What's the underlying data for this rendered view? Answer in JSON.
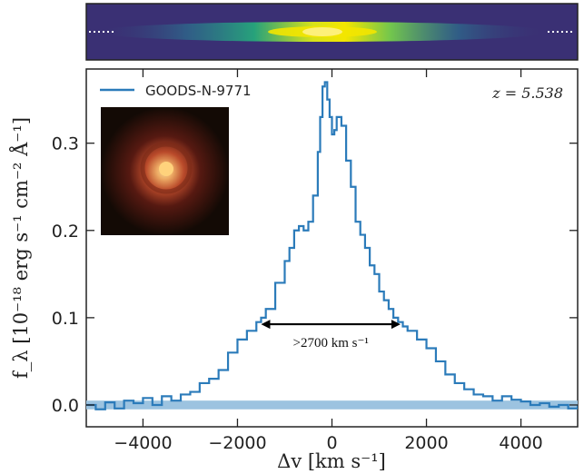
{
  "chart_data": {
    "type": "line",
    "title": "",
    "xlabel": "Δv [km s⁻¹]",
    "ylabel": "f_λ [10⁻¹⁸ erg s⁻¹ cm⁻² Å⁻¹]",
    "xlim": [
      -5200,
      5200
    ],
    "ylim": [
      -0.025,
      0.385
    ],
    "x_ticks": [
      -4000,
      -2000,
      0,
      2000,
      4000
    ],
    "x_tick_labels": [
      "−4000",
      "−2000",
      "0",
      "2000",
      "4000"
    ],
    "y_ticks": [
      0.0,
      0.1,
      0.2,
      0.3
    ],
    "y_tick_labels": [
      "0.0",
      "0.1",
      "0.2",
      "0.3"
    ],
    "grid": false,
    "legend_position": "top-left",
    "series": [
      {
        "name": "GOODS-N-9771",
        "color": "#2b7bba",
        "style": "steps",
        "x": [
          -5200,
          -5000,
          -4800,
          -4600,
          -4400,
          -4200,
          -4000,
          -3800,
          -3600,
          -3400,
          -3200,
          -3000,
          -2800,
          -2600,
          -2400,
          -2200,
          -2000,
          -1800,
          -1600,
          -1500,
          -1400,
          -1200,
          -1000,
          -900,
          -800,
          -700,
          -600,
          -500,
          -400,
          -300,
          -250,
          -200,
          -150,
          -100,
          -50,
          0,
          50,
          100,
          200,
          300,
          400,
          500,
          600,
          700,
          800,
          900,
          1000,
          1100,
          1200,
          1300,
          1400,
          1500,
          1600,
          1800,
          2000,
          2200,
          2400,
          2600,
          2800,
          3000,
          3200,
          3400,
          3600,
          3800,
          4000,
          4200,
          4400,
          4600,
          4800,
          5000,
          5200
        ],
        "y": [
          0.0,
          -0.005,
          0.003,
          -0.004,
          0.005,
          0.002,
          0.008,
          0.0,
          0.01,
          0.005,
          0.012,
          0.015,
          0.025,
          0.03,
          0.04,
          0.06,
          0.075,
          0.085,
          0.095,
          0.1,
          0.11,
          0.14,
          0.165,
          0.18,
          0.2,
          0.205,
          0.2,
          0.21,
          0.24,
          0.29,
          0.33,
          0.365,
          0.37,
          0.35,
          0.33,
          0.31,
          0.315,
          0.33,
          0.32,
          0.28,
          0.25,
          0.21,
          0.195,
          0.18,
          0.16,
          0.15,
          0.13,
          0.12,
          0.11,
          0.1,
          0.095,
          0.09,
          0.085,
          0.075,
          0.065,
          0.05,
          0.035,
          0.025,
          0.018,
          0.012,
          0.01,
          0.005,
          0.01,
          0.006,
          0.004,
          0.0,
          0.002,
          -0.002,
          0.0,
          -0.004,
          0.0
        ]
      }
    ],
    "error_band": {
      "color": "#9cc3e0",
      "x": [
        -5200,
        5200
      ],
      "y_low": -0.005,
      "y_high": 0.005
    },
    "annotations": [
      {
        "text": ">2700 km s⁻¹",
        "x_start": -1500,
        "x_end": 1450,
        "y": 0.0925,
        "text_y": 0.072
      },
      {
        "text": "z = 5.538",
        "position": "top-right"
      }
    ]
  },
  "panels": {
    "spectrum_2d": {
      "label": "2D spectrum",
      "background": "#3b2f73",
      "trace_color": "#f3e600"
    },
    "image_inset": {
      "label": "galaxy image",
      "background": "#130a05",
      "core_color": "#f9b46a"
    }
  }
}
